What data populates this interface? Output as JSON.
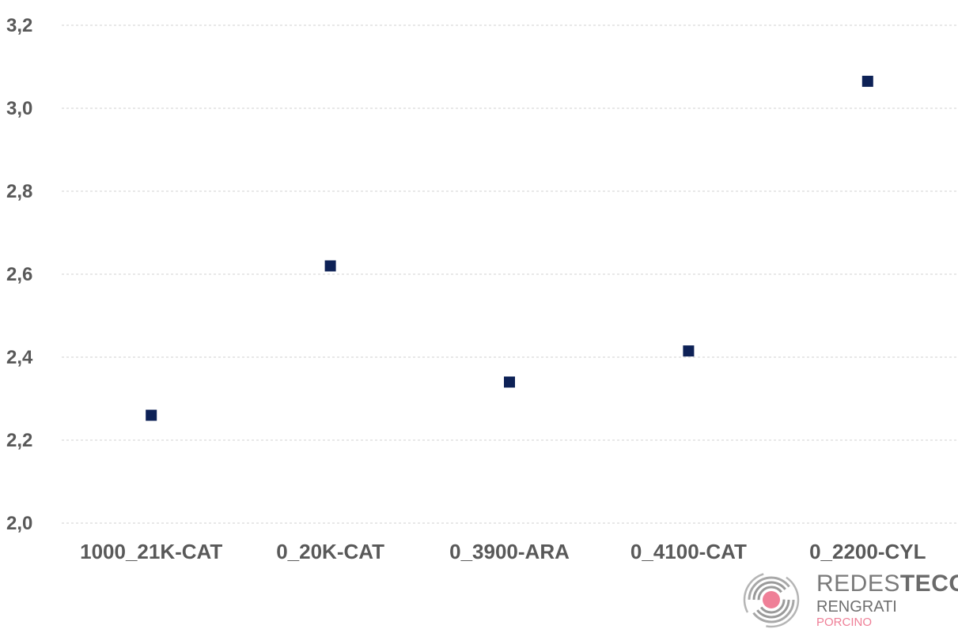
{
  "chart_data": {
    "type": "scatter",
    "categories": [
      "1000_21K-CAT",
      "0_20K-CAT",
      "0_3900-ARA",
      "0_4100-CAT",
      "0_2200-CYL"
    ],
    "values": [
      2.26,
      2.62,
      2.34,
      2.415,
      3.065
    ],
    "ylim": [
      2.0,
      3.2
    ],
    "yticks": [
      "2,0",
      "2,2",
      "2,4",
      "2,6",
      "2,8",
      "3,0",
      "3,2"
    ],
    "grid": true,
    "marker_color": "#0d2156"
  },
  "logo": {
    "name_regular": "REDES",
    "name_bold": "TECO",
    "line2": "RENGRATI",
    "line3": "PORCINO",
    "icon": "concentric-rings-logo-icon",
    "accent_color": "#ef7f97"
  }
}
